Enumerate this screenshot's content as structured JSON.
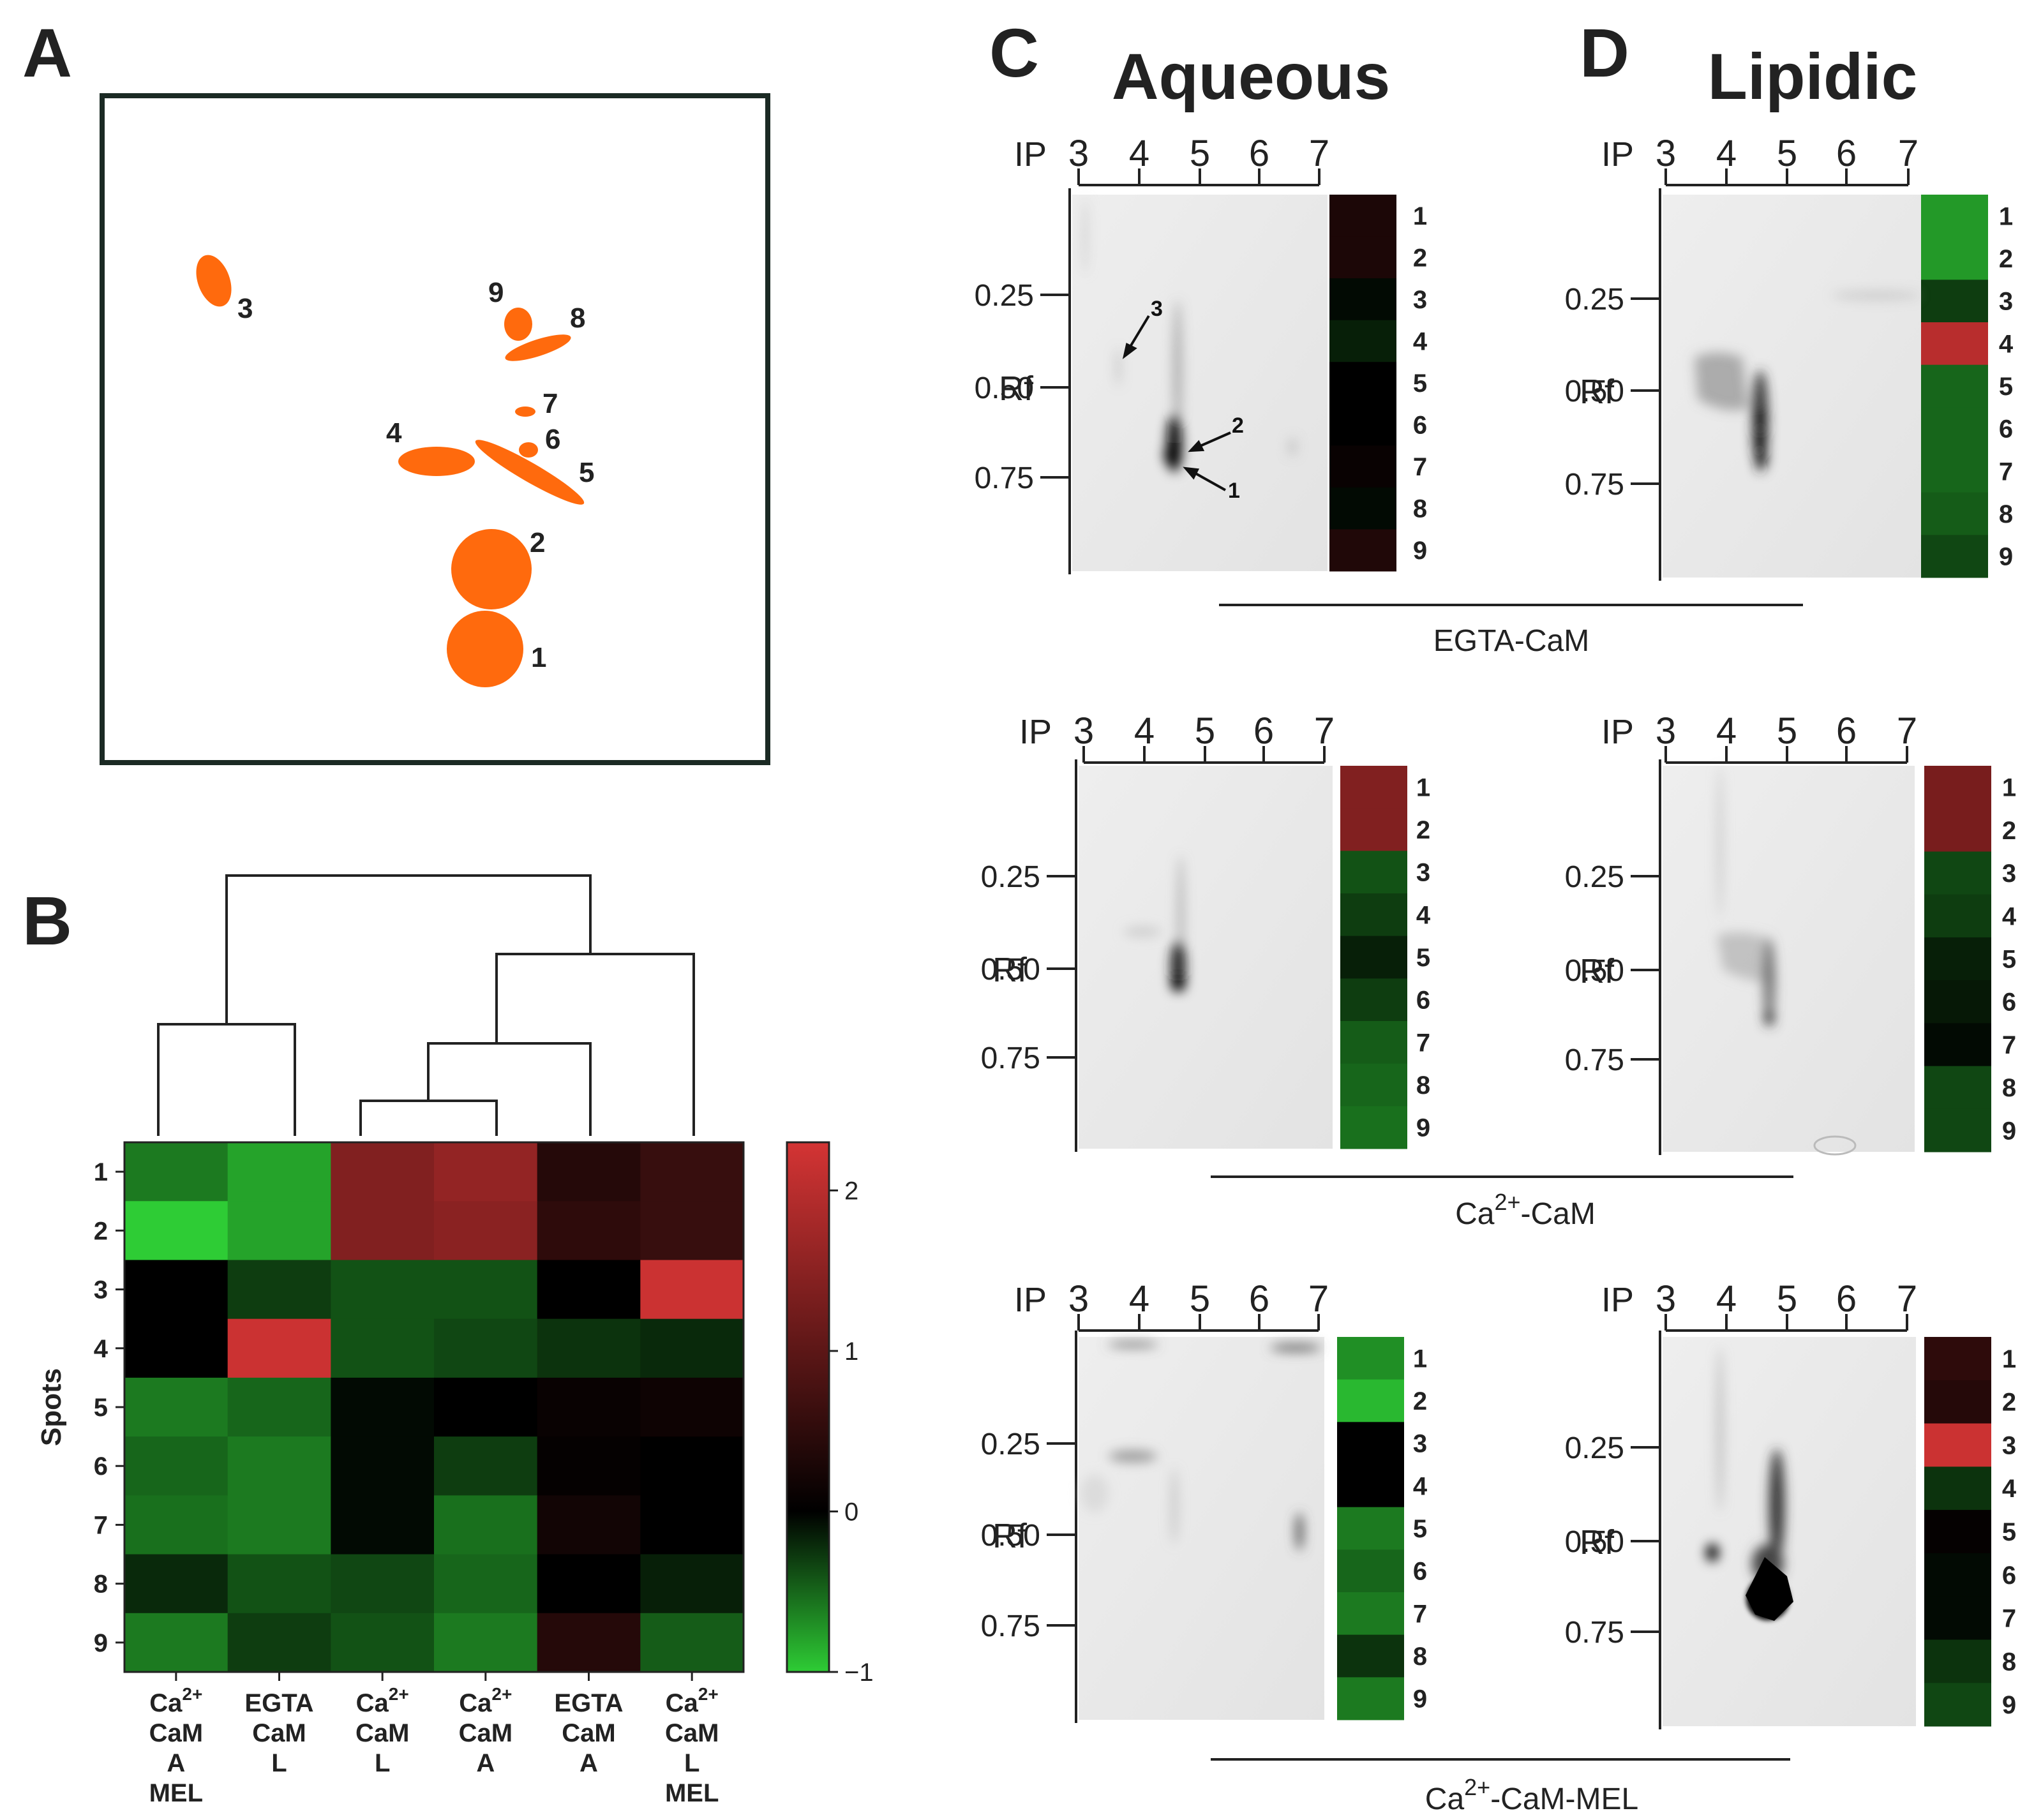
{
  "panels": {
    "A": {
      "label": "A",
      "spots": [
        {
          "n": "1",
          "color": "#ff6a0d"
        },
        {
          "n": "2",
          "color": "#ff6a0d"
        },
        {
          "n": "3",
          "color": "#ff6a0d"
        },
        {
          "n": "4",
          "color": "#ff6a0d"
        },
        {
          "n": "5",
          "color": "#ff6a0d"
        },
        {
          "n": "6",
          "color": "#ff6a0d"
        },
        {
          "n": "7",
          "color": "#ff6a0d"
        },
        {
          "n": "8",
          "color": "#ff6a0d"
        },
        {
          "n": "9",
          "color": "#ff6a0d"
        }
      ]
    },
    "B": {
      "label": "B",
      "ylabel": "Spots",
      "columns": [
        [
          "Ca2+",
          "CaM",
          "A",
          "MEL"
        ],
        [
          "EGTA",
          "CaM",
          "L"
        ],
        [
          "Ca2+",
          "CaM",
          "L"
        ],
        [
          "Ca2+",
          "CaM",
          "A"
        ],
        [
          "EGTA",
          "CaM",
          "A"
        ],
        [
          "Ca2+",
          "CaM",
          "L",
          "MEL"
        ]
      ],
      "rows": [
        "1",
        "2",
        "3",
        "4",
        "5",
        "6",
        "7",
        "8",
        "9"
      ],
      "colorbar": {
        "min": -1,
        "max": 2.3,
        "ticks": [
          "2",
          "1",
          "0",
          "−1"
        ],
        "low": "#2ecc35",
        "mid": "#000000",
        "high": "#d43434"
      }
    },
    "C": {
      "label": "C",
      "title": "Aqueous"
    },
    "D": {
      "label": "D",
      "title": "Lipidic"
    }
  },
  "gel_axes": {
    "ip_label": "IP",
    "ip_ticks": [
      "3",
      "4",
      "5",
      "6",
      "7"
    ],
    "rf_label": "Rf",
    "rf_ticks": [
      "0.25",
      "0.50",
      "0.75"
    ],
    "strip_numbers": [
      "1",
      "2",
      "3",
      "4",
      "5",
      "6",
      "7",
      "8",
      "9"
    ]
  },
  "conditions": [
    "EGTA-CaM",
    "Ca2+-CaM",
    "Ca2+-CaM-MEL"
  ],
  "arrow_labels": [
    "3",
    "2",
    "1"
  ],
  "chart_data": {
    "type": "heatmap",
    "title": "",
    "xlabel": "",
    "ylabel": "Spots",
    "categories": [
      "Ca2+ CaM A MEL",
      "EGTA CaM L",
      "Ca2+ CaM L",
      "Ca2+ CaM A",
      "EGTA CaM A",
      "Ca2+ CaM L MEL"
    ],
    "rows": [
      "1",
      "2",
      "3",
      "4",
      "5",
      "6",
      "7",
      "8",
      "9"
    ],
    "values": [
      [
        -0.6,
        -0.8,
        1.4,
        1.6,
        0.4,
        0.6
      ],
      [
        -1.0,
        -0.8,
        1.4,
        1.5,
        0.5,
        0.6
      ],
      [
        0.0,
        -0.3,
        -0.4,
        -0.4,
        0.0,
        2.2
      ],
      [
        0.0,
        2.2,
        -0.4,
        -0.35,
        -0.25,
        -0.2
      ],
      [
        -0.6,
        -0.5,
        -0.05,
        0.0,
        0.1,
        0.15
      ],
      [
        -0.5,
        -0.6,
        -0.05,
        -0.3,
        0.05,
        0.0
      ],
      [
        -0.55,
        -0.6,
        -0.05,
        -0.55,
        0.2,
        0.0
      ],
      [
        -0.2,
        -0.4,
        -0.35,
        -0.5,
        0.0,
        -0.15
      ],
      [
        -0.6,
        -0.3,
        -0.4,
        -0.6,
        0.4,
        -0.45
      ]
    ],
    "colorbar_range": [
      -1,
      2.3
    ],
    "strips": [
      {
        "panel": "C",
        "condition": "EGTA-CaM",
        "values": [
          0.3,
          0.3,
          -0.05,
          -0.15,
          0.0,
          0.0,
          0.1,
          -0.05,
          0.35
        ]
      },
      {
        "panel": "D",
        "condition": "EGTA-CaM",
        "values": [
          -0.75,
          -0.75,
          -0.3,
          2.0,
          -0.5,
          -0.5,
          -0.5,
          -0.45,
          -0.35
        ]
      },
      {
        "panel": "C",
        "condition": "Ca2+-CaM",
        "values": [
          1.4,
          1.4,
          -0.4,
          -0.3,
          -0.15,
          -0.3,
          -0.45,
          -0.5,
          -0.55
        ]
      },
      {
        "panel": "D",
        "condition": "Ca2+-CaM",
        "values": [
          1.3,
          1.3,
          -0.35,
          -0.3,
          -0.15,
          -0.12,
          -0.05,
          -0.35,
          -0.35
        ]
      },
      {
        "panel": "C",
        "condition": "Ca2+-CaM-MEL",
        "values": [
          -0.7,
          -0.9,
          0.0,
          0.0,
          -0.6,
          -0.5,
          -0.6,
          -0.25,
          -0.6
        ]
      },
      {
        "panel": "D",
        "condition": "Ca2+-CaM-MEL",
        "values": [
          0.5,
          0.4,
          2.2,
          -0.25,
          0.05,
          -0.05,
          -0.05,
          -0.25,
          -0.35
        ]
      }
    ]
  }
}
